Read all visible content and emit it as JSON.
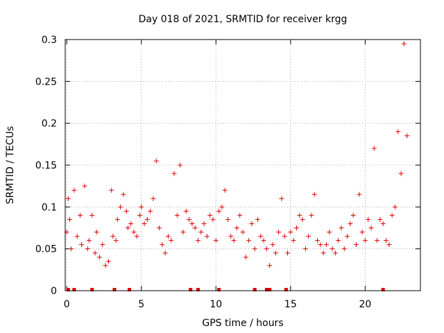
{
  "chart_data": {
    "type": "scatter",
    "title": "Day 018 of 2021, SRMTID for receiver krgg",
    "xlabel": "GPS time / hours",
    "ylabel": "SRMTID / TECUs",
    "xlim": [
      -0.1,
      23.7
    ],
    "ylim": [
      0,
      0.3
    ],
    "xticks": [
      0,
      5,
      10,
      15,
      20
    ],
    "xtick_labels": [
      "0",
      "5",
      "10",
      "15",
      "20"
    ],
    "yticks": [
      0,
      0.05,
      0.1,
      0.15,
      0.2,
      0.25,
      0.3
    ],
    "ytick_labels": [
      "0",
      "0.05",
      "0.1",
      "0.15",
      "0.2",
      "0.25",
      "0.3"
    ],
    "grid": true,
    "marker": "+",
    "color": "#dd0000",
    "series": [
      {
        "name": "SRMTID",
        "x": [
          0.0,
          0.1,
          0.2,
          0.3,
          0.5,
          0.7,
          0.9,
          1.0,
          1.2,
          1.4,
          1.5,
          1.7,
          1.9,
          2.0,
          2.2,
          2.4,
          2.6,
          2.8,
          3.0,
          3.1,
          3.3,
          3.4,
          3.6,
          3.8,
          4.0,
          4.1,
          4.3,
          4.5,
          4.7,
          4.9,
          5.0,
          5.2,
          5.4,
          5.6,
          5.8,
          6.0,
          6.2,
          6.4,
          6.6,
          6.8,
          7.0,
          7.2,
          7.4,
          7.6,
          7.8,
          8.0,
          8.2,
          8.4,
          8.6,
          8.8,
          9.0,
          9.2,
          9.4,
          9.6,
          9.8,
          10.0,
          10.2,
          10.4,
          10.6,
          10.8,
          11.0,
          11.2,
          11.4,
          11.6,
          11.8,
          12.0,
          12.2,
          12.4,
          12.6,
          12.8,
          13.0,
          13.2,
          13.4,
          13.6,
          13.8,
          14.0,
          14.2,
          14.4,
          14.6,
          14.8,
          15.0,
          15.2,
          15.4,
          15.6,
          15.8,
          16.0,
          16.2,
          16.4,
          16.6,
          16.8,
          17.0,
          17.2,
          17.4,
          17.6,
          17.8,
          18.0,
          18.2,
          18.4,
          18.6,
          18.8,
          19.0,
          19.2,
          19.4,
          19.6,
          19.8,
          20.0,
          20.2,
          20.4,
          20.6,
          20.8,
          21.0,
          21.2,
          21.4,
          21.6,
          21.8,
          22.0,
          22.2,
          22.4,
          22.6,
          22.8
        ],
        "y": [
          0.07,
          0.11,
          0.085,
          0.05,
          0.12,
          0.065,
          0.09,
          0.055,
          0.125,
          0.05,
          0.06,
          0.09,
          0.045,
          0.07,
          0.04,
          0.055,
          0.03,
          0.035,
          0.12,
          0.065,
          0.06,
          0.085,
          0.1,
          0.115,
          0.095,
          0.075,
          0.08,
          0.07,
          0.065,
          0.09,
          0.1,
          0.08,
          0.085,
          0.095,
          0.11,
          0.155,
          0.075,
          0.055,
          0.045,
          0.065,
          0.06,
          0.14,
          0.09,
          0.15,
          0.07,
          0.095,
          0.085,
          0.08,
          0.075,
          0.06,
          0.07,
          0.08,
          0.065,
          0.09,
          0.085,
          0.06,
          0.095,
          0.1,
          0.12,
          0.085,
          0.065,
          0.06,
          0.075,
          0.09,
          0.07,
          0.04,
          0.06,
          0.08,
          0.05,
          0.085,
          0.065,
          0.06,
          0.05,
          0.03,
          0.055,
          0.045,
          0.07,
          0.11,
          0.065,
          0.045,
          0.07,
          0.06,
          0.075,
          0.09,
          0.085,
          0.05,
          0.065,
          0.09,
          0.115,
          0.06,
          0.055,
          0.045,
          0.055,
          0.07,
          0.05,
          0.045,
          0.06,
          0.075,
          0.05,
          0.065,
          0.08,
          0.09,
          0.055,
          0.115,
          0.07,
          0.06,
          0.085,
          0.075,
          0.17,
          0.06,
          0.085,
          0.08,
          0.06,
          0.055,
          0.09,
          0.1,
          0.19,
          0.14,
          0.295,
          0.185
        ]
      }
    ],
    "gaps_x": [
      0.1,
      0.5,
      1.7,
      3.2,
      4.2,
      8.3,
      8.8,
      10.2,
      12.6,
      13.4,
      13.6,
      14.7,
      21.2
    ]
  }
}
